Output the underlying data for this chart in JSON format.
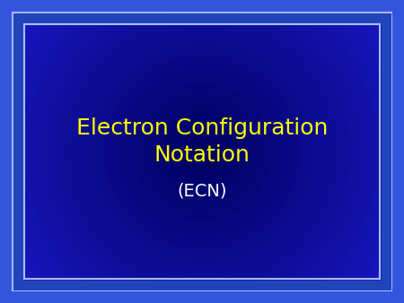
{
  "title_line1": "Electron Configuration",
  "title_line2": "Notation",
  "subtitle": "(ECN)",
  "title_color": "#FFFF00",
  "subtitle_color": "#FFFFFF",
  "figsize": [
    4.5,
    3.38
  ],
  "dpi": 100,
  "title_fontsize": 18,
  "subtitle_fontsize": 14,
  "border_outer_color": "#3333CC",
  "border_mid_color": "#AAAAEE",
  "border_inner_color": "#6666CC"
}
